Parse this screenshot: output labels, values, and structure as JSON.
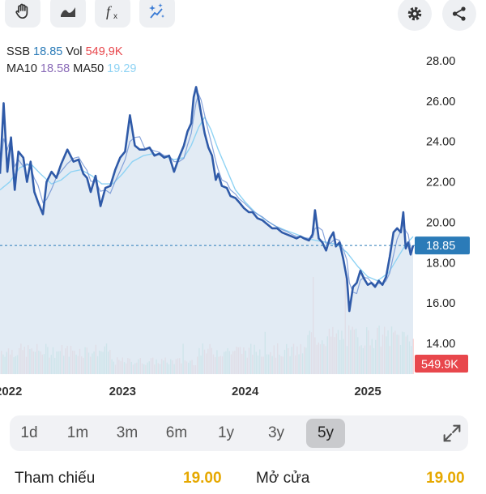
{
  "toolbar": {
    "left_icons": [
      "hand-icon",
      "wave-chart-icon",
      "function-icon",
      "sparkle-chart-icon"
    ],
    "right_icons": [
      "gear-icon",
      "share-icon"
    ]
  },
  "legend": {
    "symbol": "SSB",
    "price": "18.85",
    "vol_label": "Vol",
    "vol": "549,9K",
    "ma10_label": "MA10",
    "ma10": "18.58",
    "ma50_label": "MA50",
    "ma50": "19.29"
  },
  "colors": {
    "price_line": "#2f5aa8",
    "ma10": "#6c8fd2",
    "ma50": "#8fd3f4",
    "area": "#dbe6f1",
    "price_tag": "#2b7bb8",
    "vol_tag": "#e8474c",
    "vol_up": "#7fd3c4",
    "vol_down": "#f3a5a6",
    "legend_price": "#2b7bb8",
    "legend_vol": "#e8474c",
    "legend_ma10": "#8a6bb8",
    "legend_ma50": "#8fd3f4"
  },
  "chart_data": {
    "type": "line",
    "y_ticks": [
      "28.00",
      "26.00",
      "24.00",
      "22.00",
      "20.00",
      "18.00",
      "16.00",
      "14.00"
    ],
    "ylim": [
      14,
      28
    ],
    "x_ticks": [
      {
        "label": "2022",
        "t": 2022.0
      },
      {
        "label": "2023",
        "t": 2023.0
      },
      {
        "label": "2024",
        "t": 2024.0
      },
      {
        "label": "2025",
        "t": 2025.0
      }
    ],
    "xlim": [
      2022.0,
      2025.37
    ],
    "last_price_label": "18.85",
    "last_price": 18.85,
    "volume_label": "549.9K",
    "price_series": [
      [
        2022.0,
        22.4
      ],
      [
        2022.03,
        25.9
      ],
      [
        2022.06,
        22.5
      ],
      [
        2022.09,
        24.2
      ],
      [
        2022.12,
        21.6
      ],
      [
        2022.15,
        23.5
      ],
      [
        2022.19,
        23.2
      ],
      [
        2022.22,
        22.0
      ],
      [
        2022.25,
        23.0
      ],
      [
        2022.28,
        21.5
      ],
      [
        2022.31,
        21.0
      ],
      [
        2022.35,
        20.4
      ],
      [
        2022.38,
        22.0
      ],
      [
        2022.42,
        22.5
      ],
      [
        2022.46,
        22.2
      ],
      [
        2022.5,
        22.9
      ],
      [
        2022.55,
        23.6
      ],
      [
        2022.6,
        23.0
      ],
      [
        2022.64,
        23.1
      ],
      [
        2022.68,
        22.4
      ],
      [
        2022.71,
        22.2
      ],
      [
        2022.74,
        21.5
      ],
      [
        2022.78,
        22.3
      ],
      [
        2022.82,
        20.8
      ],
      [
        2022.86,
        21.7
      ],
      [
        2022.9,
        21.8
      ],
      [
        2022.94,
        22.6
      ],
      [
        2022.98,
        23.2
      ],
      [
        2023.02,
        23.5
      ],
      [
        2023.06,
        25.3
      ],
      [
        2023.1,
        23.8
      ],
      [
        2023.14,
        23.6
      ],
      [
        2023.18,
        23.6
      ],
      [
        2023.22,
        23.7
      ],
      [
        2023.26,
        23.3
      ],
      [
        2023.3,
        23.4
      ],
      [
        2023.34,
        23.2
      ],
      [
        2023.38,
        23.3
      ],
      [
        2023.42,
        22.5
      ],
      [
        2023.46,
        23.2
      ],
      [
        2023.5,
        23.8
      ],
      [
        2023.53,
        24.5
      ],
      [
        2023.56,
        24.9
      ],
      [
        2023.58,
        26.2
      ],
      [
        2023.6,
        26.7
      ],
      [
        2023.62,
        26.1
      ],
      [
        2023.64,
        25.4
      ],
      [
        2023.67,
        24.4
      ],
      [
        2023.7,
        23.7
      ],
      [
        2023.73,
        23.3
      ],
      [
        2023.76,
        22.1
      ],
      [
        2023.78,
        22.4
      ],
      [
        2023.81,
        21.8
      ],
      [
        2023.85,
        21.7
      ],
      [
        2023.88,
        21.3
      ],
      [
        2023.92,
        21.2
      ],
      [
        2023.95,
        21.0
      ],
      [
        2023.99,
        20.7
      ],
      [
        2024.03,
        20.5
      ],
      [
        2024.06,
        20.5
      ],
      [
        2024.1,
        20.2
      ],
      [
        2024.14,
        20.1
      ],
      [
        2024.18,
        19.9
      ],
      [
        2024.22,
        19.7
      ],
      [
        2024.26,
        19.7
      ],
      [
        2024.3,
        19.5
      ],
      [
        2024.34,
        19.4
      ],
      [
        2024.38,
        19.3
      ],
      [
        2024.42,
        19.2
      ],
      [
        2024.45,
        19.3
      ],
      [
        2024.48,
        19.2
      ],
      [
        2024.52,
        19.1
      ],
      [
        2024.55,
        19.4
      ],
      [
        2024.57,
        20.6
      ],
      [
        2024.6,
        19.2
      ],
      [
        2024.63,
        19.0
      ],
      [
        2024.66,
        18.6
      ],
      [
        2024.69,
        19.2
      ],
      [
        2024.72,
        19.5
      ],
      [
        2024.74,
        18.8
      ],
      [
        2024.77,
        19.0
      ],
      [
        2024.8,
        18.2
      ],
      [
        2024.83,
        17.2
      ],
      [
        2024.85,
        15.6
      ],
      [
        2024.88,
        16.8
      ],
      [
        2024.91,
        17.0
      ],
      [
        2024.94,
        17.6
      ],
      [
        2024.97,
        17.2
      ],
      [
        2025.0,
        16.9
      ],
      [
        2025.03,
        17.0
      ],
      [
        2025.06,
        16.8
      ],
      [
        2025.09,
        17.1
      ],
      [
        2025.12,
        16.9
      ],
      [
        2025.15,
        17.3
      ],
      [
        2025.18,
        18.3
      ],
      [
        2025.21,
        19.5
      ],
      [
        2025.24,
        19.7
      ],
      [
        2025.27,
        19.5
      ],
      [
        2025.29,
        20.5
      ],
      [
        2025.31,
        18.7
      ],
      [
        2025.33,
        19.0
      ],
      [
        2025.35,
        18.4
      ],
      [
        2025.37,
        18.85
      ]
    ],
    "ma50_series": [
      [
        2022.0,
        21.6
      ],
      [
        2022.08,
        22.0
      ],
      [
        2022.16,
        22.7
      ],
      [
        2022.25,
        22.9
      ],
      [
        2022.33,
        22.4
      ],
      [
        2022.42,
        21.9
      ],
      [
        2022.5,
        22.1
      ],
      [
        2022.58,
        22.5
      ],
      [
        2022.66,
        22.6
      ],
      [
        2022.75,
        22.3
      ],
      [
        2022.83,
        21.9
      ],
      [
        2022.92,
        21.9
      ],
      [
        2023.0,
        22.4
      ],
      [
        2023.08,
        23.0
      ],
      [
        2023.17,
        23.3
      ],
      [
        2023.25,
        23.4
      ],
      [
        2023.33,
        23.3
      ],
      [
        2023.42,
        23.1
      ],
      [
        2023.5,
        23.2
      ],
      [
        2023.56,
        23.8
      ],
      [
        2023.62,
        24.7
      ],
      [
        2023.67,
        25.2
      ],
      [
        2023.72,
        24.6
      ],
      [
        2023.78,
        23.6
      ],
      [
        2023.85,
        22.6
      ],
      [
        2023.92,
        21.6
      ],
      [
        2024.0,
        21.0
      ],
      [
        2024.08,
        20.5
      ],
      [
        2024.17,
        20.1
      ],
      [
        2024.25,
        19.8
      ],
      [
        2024.33,
        19.6
      ],
      [
        2024.42,
        19.4
      ],
      [
        2024.5,
        19.2
      ],
      [
        2024.58,
        19.1
      ],
      [
        2024.67,
        19.0
      ],
      [
        2024.75,
        18.9
      ],
      [
        2024.83,
        18.5
      ],
      [
        2024.92,
        17.8
      ],
      [
        2025.0,
        17.3
      ],
      [
        2025.08,
        17.1
      ],
      [
        2025.17,
        17.5
      ],
      [
        2025.25,
        18.3
      ],
      [
        2025.31,
        18.9
      ],
      [
        2025.37,
        19.29
      ]
    ]
  },
  "ranges": {
    "items": [
      "1d",
      "1m",
      "3m",
      "6m",
      "1y",
      "3y",
      "5y"
    ],
    "active": "5y",
    "expand_icon": "expand-icon"
  },
  "stats": {
    "ref_label": "Tham chiếu",
    "ref_value": "19.00",
    "open_label": "Mở cửa",
    "open_value": "19.00"
  }
}
